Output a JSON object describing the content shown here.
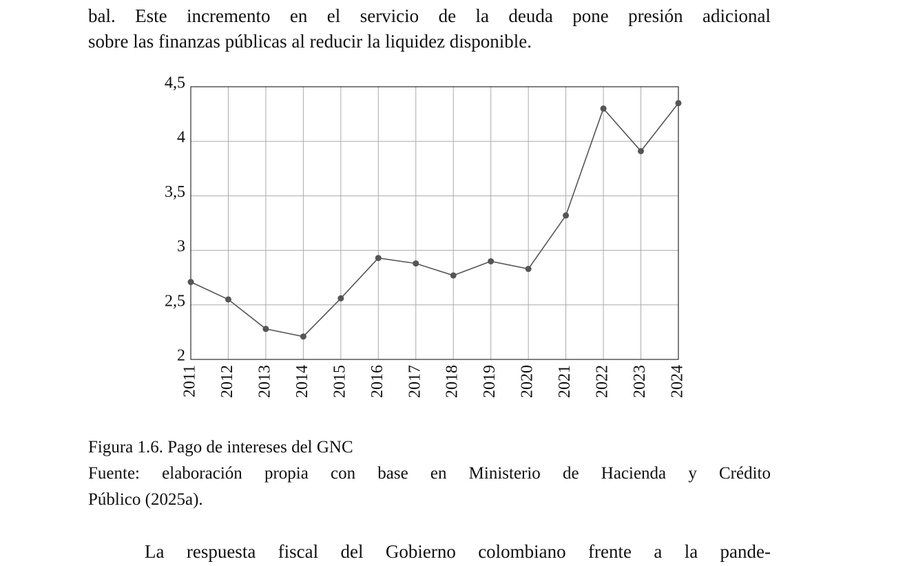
{
  "text_before": [
    "bal. Este incremento en el servicio de la deuda pone presión adicional",
    "sobre las finanzas públicas al reducir la liquidez disponible."
  ],
  "chart_data": {
    "type": "line",
    "x": [
      2011,
      2012,
      2013,
      2014,
      2015,
      2016,
      2017,
      2018,
      2019,
      2020,
      2021,
      2022,
      2023,
      2024
    ],
    "series": [
      {
        "color": "#555555",
        "values": [
          2.71,
          2.55,
          2.28,
          2.21,
          2.56,
          2.93,
          2.88,
          2.77,
          2.9,
          2.83,
          3.32,
          4.3,
          3.91,
          4.35
        ]
      }
    ],
    "xlim": [
      2011,
      2024
    ],
    "xticks": [
      2011,
      2012,
      2013,
      2014,
      2015,
      2016,
      2017,
      2018,
      2019,
      2020,
      2021,
      2022,
      2023,
      2024
    ],
    "ylim": [
      2,
      4.5
    ],
    "yticks": [
      2,
      {
        "value": 2.5,
        "label": "2,5"
      },
      3,
      {
        "value": 3.5,
        "label": "3,5"
      },
      4,
      {
        "value": 4.5,
        "label": "4,5"
      }
    ],
    "grid": true
  },
  "caption": {
    "title": "Figura 1.6. Pago de intereses del GNC",
    "source": [
      "Fuente: elaboración propia con base en Ministerio de Hacienda y Crédito",
      "Público (2025a)."
    ]
  },
  "text_after": [
    "La respuesta fiscal del Gobierno colombiano frente a la pande-"
  ]
}
